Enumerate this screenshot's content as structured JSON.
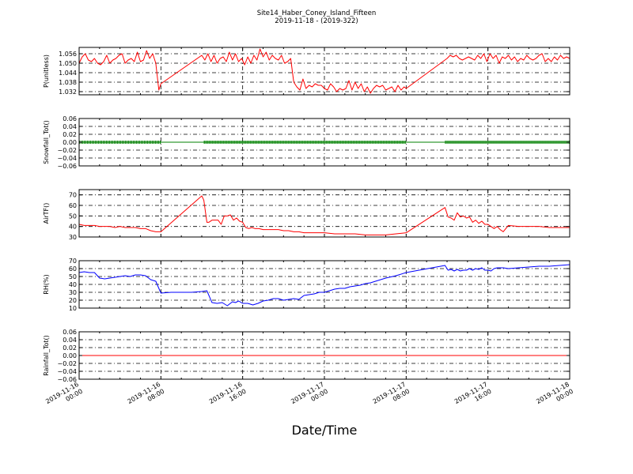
{
  "figure": {
    "title_line1": "Site14_Haber_Coney_Island_Fifteen",
    "title_line2": "2019-11-18 - (2019-322)",
    "xlabel": "Date/Time"
  },
  "chart_data": [
    {
      "type": "line",
      "ylabel": "P(unitless)",
      "color": "#ff0000",
      "ylim": [
        1.03,
        1.06
      ],
      "yticks": [
        1.032,
        1.038,
        1.044,
        1.05,
        1.056
      ],
      "ytick_labels": [
        "1.032",
        "1.038",
        "1.044",
        "1.050",
        "1.056"
      ],
      "series": [
        {
          "x": [
            0,
            0.3,
            0.6,
            0.9,
            1.2,
            1.5,
            1.8,
            2.1,
            2.4,
            2.7,
            3.0,
            3.3,
            3.6,
            3.9,
            4.2,
            4.5,
            4.8,
            5.1,
            5.4,
            5.7,
            6.0,
            6.3,
            6.6,
            6.9,
            7.2,
            7.5,
            7.8,
            8.0,
            12.0,
            12.3,
            12.6,
            12.9,
            13.2,
            13.5,
            13.8,
            14.1,
            14.4,
            14.7,
            15.0,
            15.3,
            15.6,
            15.9,
            16.2,
            16.5,
            16.8,
            17.1,
            17.4,
            17.7,
            18.0,
            18.3,
            18.6,
            18.9,
            19.2,
            19.5,
            19.8,
            20.1,
            20.4,
            20.7,
            21.0,
            21.3,
            21.6,
            21.9,
            22.2,
            22.5,
            22.8,
            23.1,
            23.4,
            23.7,
            24.0,
            24.3,
            24.6,
            24.9,
            25.2,
            25.5,
            25.8,
            26.1,
            26.4,
            26.7,
            27.0,
            27.3,
            27.6,
            27.9,
            28.2,
            28.5,
            28.8,
            29.1,
            29.4,
            29.7,
            30.0,
            30.3,
            30.6,
            30.9,
            31.2,
            31.5,
            31.8,
            32.0,
            36.0,
            36.3,
            36.6,
            36.9,
            37.2,
            37.5,
            37.8,
            38.1,
            38.4,
            38.7,
            39.0,
            39.3,
            39.6,
            39.9,
            40.2,
            40.5,
            40.8,
            41.1,
            41.4,
            41.7,
            42.0,
            42.3,
            42.6,
            42.9,
            43.2,
            43.5,
            43.8,
            44.1,
            44.4,
            44.7,
            45.0,
            45.3,
            45.6,
            45.9,
            46.2,
            46.5,
            46.8,
            47.1,
            47.4,
            47.7,
            48.0
          ],
          "y": [
            1.05,
            1.054,
            1.056,
            1.052,
            1.051,
            1.053,
            1.05,
            1.049,
            1.051,
            1.055,
            1.05,
            1.052,
            1.053,
            1.055,
            1.056,
            1.05,
            1.052,
            1.053,
            1.051,
            1.057,
            1.051,
            1.052,
            1.058,
            1.053,
            1.056,
            1.05,
            1.033,
            1.037,
            1.055,
            1.052,
            1.056,
            1.051,
            1.055,
            1.05,
            1.053,
            1.054,
            1.051,
            1.057,
            1.052,
            1.056,
            1.051,
            1.053,
            1.049,
            1.054,
            1.05,
            1.055,
            1.052,
            1.059,
            1.054,
            1.057,
            1.052,
            1.055,
            1.053,
            1.052,
            1.055,
            1.05,
            1.051,
            1.053,
            1.038,
            1.035,
            1.033,
            1.04,
            1.034,
            1.036,
            1.035,
            1.037,
            1.036,
            1.036,
            1.034,
            1.033,
            1.037,
            1.035,
            1.032,
            1.034,
            1.033,
            1.034,
            1.039,
            1.033,
            1.038,
            1.034,
            1.037,
            1.032,
            1.035,
            1.031,
            1.034,
            1.036,
            1.035,
            1.036,
            1.033,
            1.034,
            1.035,
            1.032,
            1.036,
            1.033,
            1.035,
            1.034,
            1.053,
            1.055,
            1.054,
            1.055,
            1.053,
            1.052,
            1.053,
            1.054,
            1.053,
            1.052,
            1.055,
            1.053,
            1.056,
            1.051,
            1.056,
            1.053,
            1.055,
            1.05,
            1.054,
            1.053,
            1.055,
            1.052,
            1.054,
            1.051,
            1.053,
            1.052,
            1.055,
            1.053,
            1.052,
            1.053,
            1.055,
            1.056,
            1.051,
            1.053,
            1.051,
            1.054,
            1.052,
            1.055,
            1.053,
            1.054,
            1.053
          ]
        }
      ]
    },
    {
      "type": "line",
      "ylabel": "Snowfall_Tot()",
      "color": "#008000",
      "marker": "dot",
      "ylim": [
        -0.06,
        0.06
      ],
      "yticks": [
        -0.06,
        -0.04,
        -0.02,
        0.0,
        0.02,
        0.04,
        0.06
      ],
      "ytick_labels": [
        "−0.06",
        "−0.04",
        "−0.02",
        "0.00",
        "0.02",
        "0.04",
        "0.06"
      ],
      "series": [
        {
          "segments": [
            [
              0,
              8
            ],
            [
              12.2,
              32
            ],
            [
              35.8,
              48
            ]
          ],
          "value": 0.0
        }
      ]
    },
    {
      "type": "line",
      "ylabel": "AirTF()",
      "color": "#ff0000",
      "ylim": [
        30,
        75
      ],
      "yticks": [
        30,
        40,
        50,
        60,
        70
      ],
      "ytick_labels": [
        "30",
        "40",
        "50",
        "60",
        "70"
      ],
      "series": [
        {
          "x": [
            0,
            0.5,
            1,
            1.5,
            2,
            2.5,
            3,
            3.5,
            4,
            4.5,
            5,
            5.5,
            6,
            6.5,
            7,
            7.5,
            8,
            12.0,
            12.2,
            12.5,
            12.7,
            13.0,
            13.3,
            13.6,
            13.9,
            14.2,
            14.5,
            14.8,
            15.1,
            15.4,
            15.7,
            16.0,
            16.3,
            16.6,
            16.9,
            17.2,
            17.6,
            18.0,
            18.5,
            19.0,
            19.5,
            20.0,
            20.5,
            21.0,
            21.5,
            22.0,
            23.0,
            24.0,
            25.0,
            26.0,
            27.0,
            28.0,
            29.0,
            30.0,
            31.0,
            32.0,
            35.8,
            36.1,
            36.4,
            36.7,
            37.0,
            37.3,
            37.6,
            37.9,
            38.2,
            38.5,
            38.8,
            39.1,
            39.4,
            39.7,
            40.0,
            40.3,
            40.6,
            40.9,
            41.2,
            41.5,
            42.0,
            43.0,
            44.0,
            45.0,
            46.0,
            47.0,
            48.0
          ],
          "y": [
            42,
            41,
            41,
            41,
            40,
            40,
            40,
            39,
            40,
            39,
            39,
            39,
            38,
            38,
            36,
            35,
            35,
            69,
            65,
            44,
            44,
            46,
            46,
            46,
            42,
            50,
            50,
            51,
            46,
            48,
            45,
            44,
            39,
            38,
            39,
            38,
            38,
            37,
            37,
            37,
            37,
            36,
            36,
            35,
            35,
            34,
            34,
            34,
            33,
            33,
            33,
            32,
            32,
            32,
            33,
            34,
            58,
            49,
            48,
            46,
            53,
            49,
            50,
            48,
            49,
            44,
            46,
            43,
            45,
            42,
            42,
            40,
            38,
            40,
            37,
            35,
            41,
            40,
            40,
            40,
            39,
            39,
            39
          ]
        }
      ]
    },
    {
      "type": "line",
      "ylabel": "RH(%)",
      "color": "#0000ff",
      "ylim": [
        10,
        70
      ],
      "yticks": [
        10,
        20,
        30,
        40,
        50,
        60,
        70
      ],
      "ytick_labels": [
        "10",
        "20",
        "30",
        "40",
        "50",
        "60",
        "70"
      ],
      "series": [
        {
          "x": [
            0,
            0.5,
            1,
            1.5,
            2,
            2.5,
            3,
            3.5,
            4,
            4.5,
            5,
            5.5,
            6,
            6.5,
            7,
            7.5,
            8,
            9,
            10,
            11,
            12,
            12.5,
            13,
            13.5,
            14,
            14.5,
            15,
            15.3,
            15.6,
            16,
            16.5,
            17,
            17.5,
            18,
            18.5,
            19,
            19.5,
            20,
            20.5,
            21,
            21.5,
            22,
            22.5,
            23,
            23.5,
            24,
            24.5,
            25,
            25.5,
            26,
            26.5,
            27,
            27.5,
            28,
            28.5,
            29,
            29.5,
            30,
            31,
            32,
            35.8,
            36.1,
            36.4,
            36.7,
            37.0,
            37.3,
            37.6,
            37.9,
            38.2,
            38.5,
            38.8,
            39.1,
            39.4,
            39.7,
            40.0,
            40.3,
            40.6,
            40.9,
            41.2,
            41.5,
            42.0,
            43.0,
            44.0,
            45.0,
            46.0,
            47.0,
            48.0
          ],
          "y": [
            55,
            56,
            55,
            55,
            48,
            47,
            48,
            49,
            50,
            51,
            50,
            52,
            52,
            51,
            46,
            44,
            29,
            30,
            30,
            30,
            31,
            32,
            17,
            16,
            17,
            13,
            18,
            17,
            19,
            16,
            16,
            14,
            16,
            19,
            20,
            22,
            22,
            20,
            21,
            22,
            21,
            26,
            27,
            28,
            30,
            30,
            32,
            34,
            35,
            35,
            37,
            38,
            39,
            41,
            42,
            44,
            46,
            48,
            51,
            55,
            64,
            58,
            59,
            57,
            59,
            57,
            58,
            58,
            60,
            58,
            60,
            59,
            61,
            58,
            58,
            57,
            60,
            61,
            61,
            61,
            60,
            61,
            62,
            63,
            63,
            64,
            65
          ]
        }
      ]
    },
    {
      "type": "line",
      "ylabel": "Rainfall_Tot()",
      "color": "#ff0000",
      "ylim": [
        -0.06,
        0.06
      ],
      "yticks": [
        -0.06,
        -0.04,
        -0.02,
        0.0,
        0.02,
        0.04,
        0.06
      ],
      "ytick_labels": [
        "−0.06",
        "−0.04",
        "−0.02",
        "0.00",
        "0.02",
        "0.04",
        "0.06"
      ],
      "series": [
        {
          "x": [
            0,
            48
          ],
          "y": [
            0.0,
            0.0
          ]
        }
      ]
    }
  ],
  "x_axis": {
    "range_hours": [
      0,
      48
    ],
    "ticks_hours": [
      0,
      8,
      16,
      24,
      32,
      40,
      48
    ],
    "tick_labels": [
      [
        "2019-11-16",
        "00:00"
      ],
      [
        "2019-11-16",
        "08:00"
      ],
      [
        "2019-11-16",
        "16:00"
      ],
      [
        "2019-11-17",
        "00:00"
      ],
      [
        "2019-11-17",
        "08:00"
      ],
      [
        "2019-11-17",
        "16:00"
      ],
      [
        "2019-11-18",
        "00:00"
      ]
    ],
    "minor_step_hours": 2
  }
}
